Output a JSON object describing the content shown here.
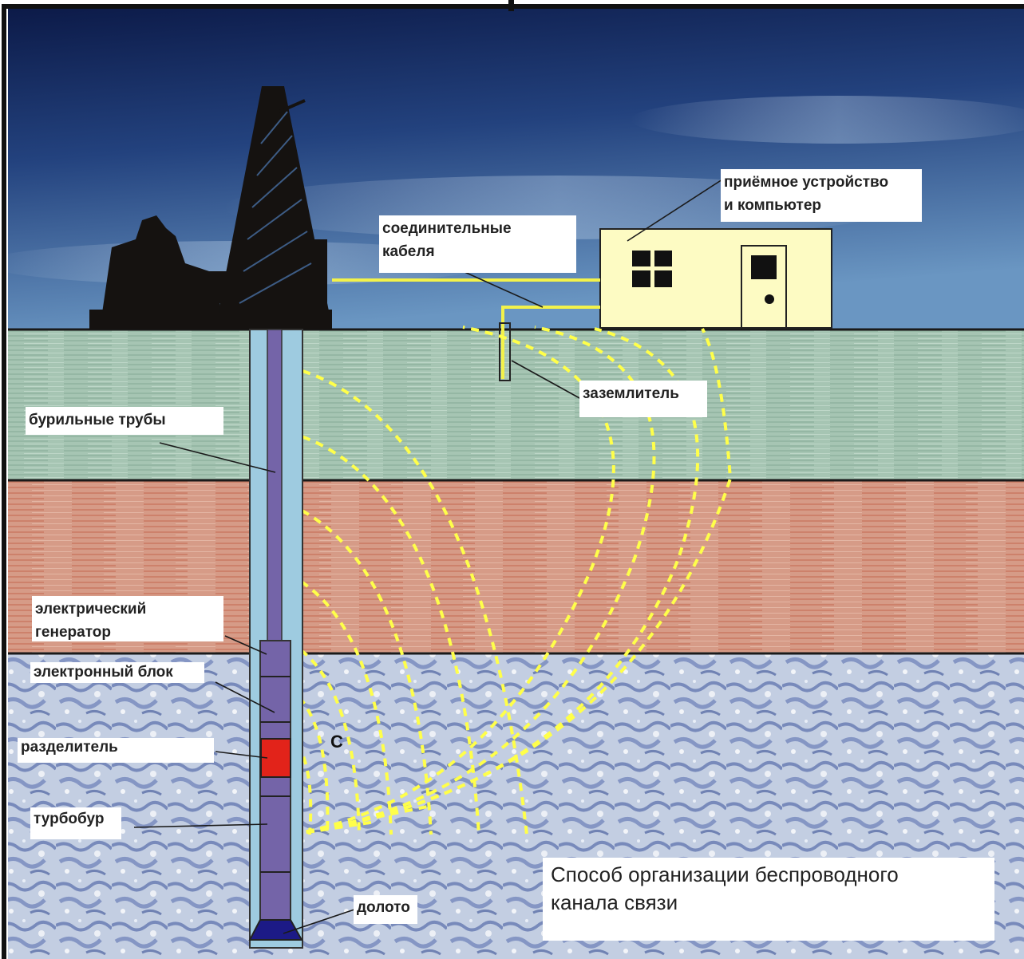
{
  "labels": {
    "receiver": "приёмное устройство\nи компьютер",
    "cables": "соединительные\nкабеля",
    "ground_electrode": "заземлитель",
    "drill_pipes": "бурильные трубы",
    "generator": "электрический\nгенератор",
    "electronic_unit": "электронный блок",
    "separator": "разделитель",
    "turbodrill": "турбобур",
    "bit": "долото",
    "field_symbol": "С"
  },
  "caption": "Способ организации беспроводного\nканала связи",
  "colors": {
    "sky_top": "#10204f",
    "sky_bottom": "#5d8bbb",
    "layer_top": "#a5c4b1",
    "layer_middle": "#d79a86",
    "layer_bottom": "#b5c4de",
    "field_lines": "#ffff4a",
    "cable": "#f3f24a",
    "pipe_outer": "#9ecbe0",
    "pipe_inner": "#7464a8",
    "separator": "#e2231a",
    "bit": "#1c1a86",
    "building": "#fdfbc3"
  },
  "icons": [
    "drilling-rig-icon",
    "building-icon",
    "window-icon",
    "door-icon"
  ]
}
